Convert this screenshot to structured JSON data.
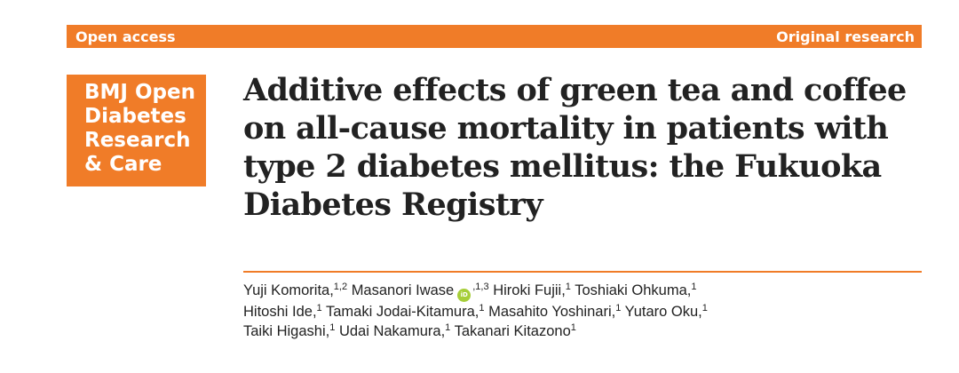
{
  "header": {
    "left_label": "Open access",
    "right_label": "Original research"
  },
  "journal_logo": {
    "lines": [
      "BMJ Open",
      "Diabetes",
      "Research",
      "& Care"
    ]
  },
  "article": {
    "title_lines": [
      "Additive effects of green tea and coffee",
      "on all-cause mortality in patients with",
      "type 2 diabetes mellitus: the Fukuoka",
      "Diabetes Registry"
    ]
  },
  "authors": [
    {
      "name": "Yuji Komorita,",
      "sup": "1,2"
    },
    {
      "name": "Masanori Iwase",
      "orcid": "iD",
      "sup": ",1,3"
    },
    {
      "name": "Hiroki Fujii,",
      "sup": "1"
    },
    {
      "name": "Toshiaki Ohkuma,",
      "sup": "1"
    },
    {
      "name": "Hitoshi Ide,",
      "sup": "1"
    },
    {
      "name": "Tamaki Jodai-Kitamura,",
      "sup": "1"
    },
    {
      "name": "Masahito Yoshinari,",
      "sup": "1"
    },
    {
      "name": "Yutaro Oku,",
      "sup": "1"
    },
    {
      "name": "Taiki Higashi,",
      "sup": "1"
    },
    {
      "name": "Udai Nakamura,",
      "sup": "1"
    },
    {
      "name": "Takanari Kitazono",
      "sup": "1"
    }
  ],
  "colors": {
    "accent": "#f07c28",
    "orcid": "#a6ce39",
    "text": "#222222"
  }
}
